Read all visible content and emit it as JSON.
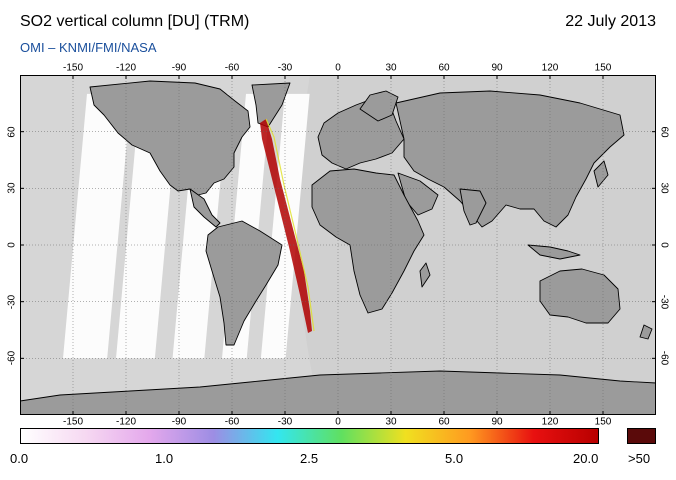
{
  "title": "SO2 vertical column [DU] (TRM)",
  "date": "22 July 2013",
  "subtitle": "OMI  –  KNMI/FMI/NASA",
  "map": {
    "lon_ticks": [
      "-150",
      "-120",
      "-90",
      "-60",
      "-30",
      "0",
      "30",
      "60",
      "90",
      "120",
      "150"
    ],
    "lat_ticks_left": [
      "60",
      "30",
      "0",
      "-30",
      "-60"
    ],
    "lat_ticks_right": [
      "60",
      "30",
      "0",
      "-30",
      "-60"
    ],
    "colors": {
      "ocean": "#d6d6d6",
      "land": "#9b9b9b",
      "swath": "#ffffff",
      "night": "#c7c7c7"
    }
  },
  "scale": {
    "labels": [
      "0.0",
      "1.0",
      "2.5",
      "5.0",
      "20.0"
    ],
    "over_label": ">50",
    "over_color": "#5a0a0a",
    "colors": [
      "#ffffff",
      "#f6d9f2",
      "#e4a8ec",
      "#9d8de4",
      "#33e6f0",
      "#60e060",
      "#f0e020",
      "#ff9a20",
      "#e81010",
      "#b80000"
    ]
  }
}
